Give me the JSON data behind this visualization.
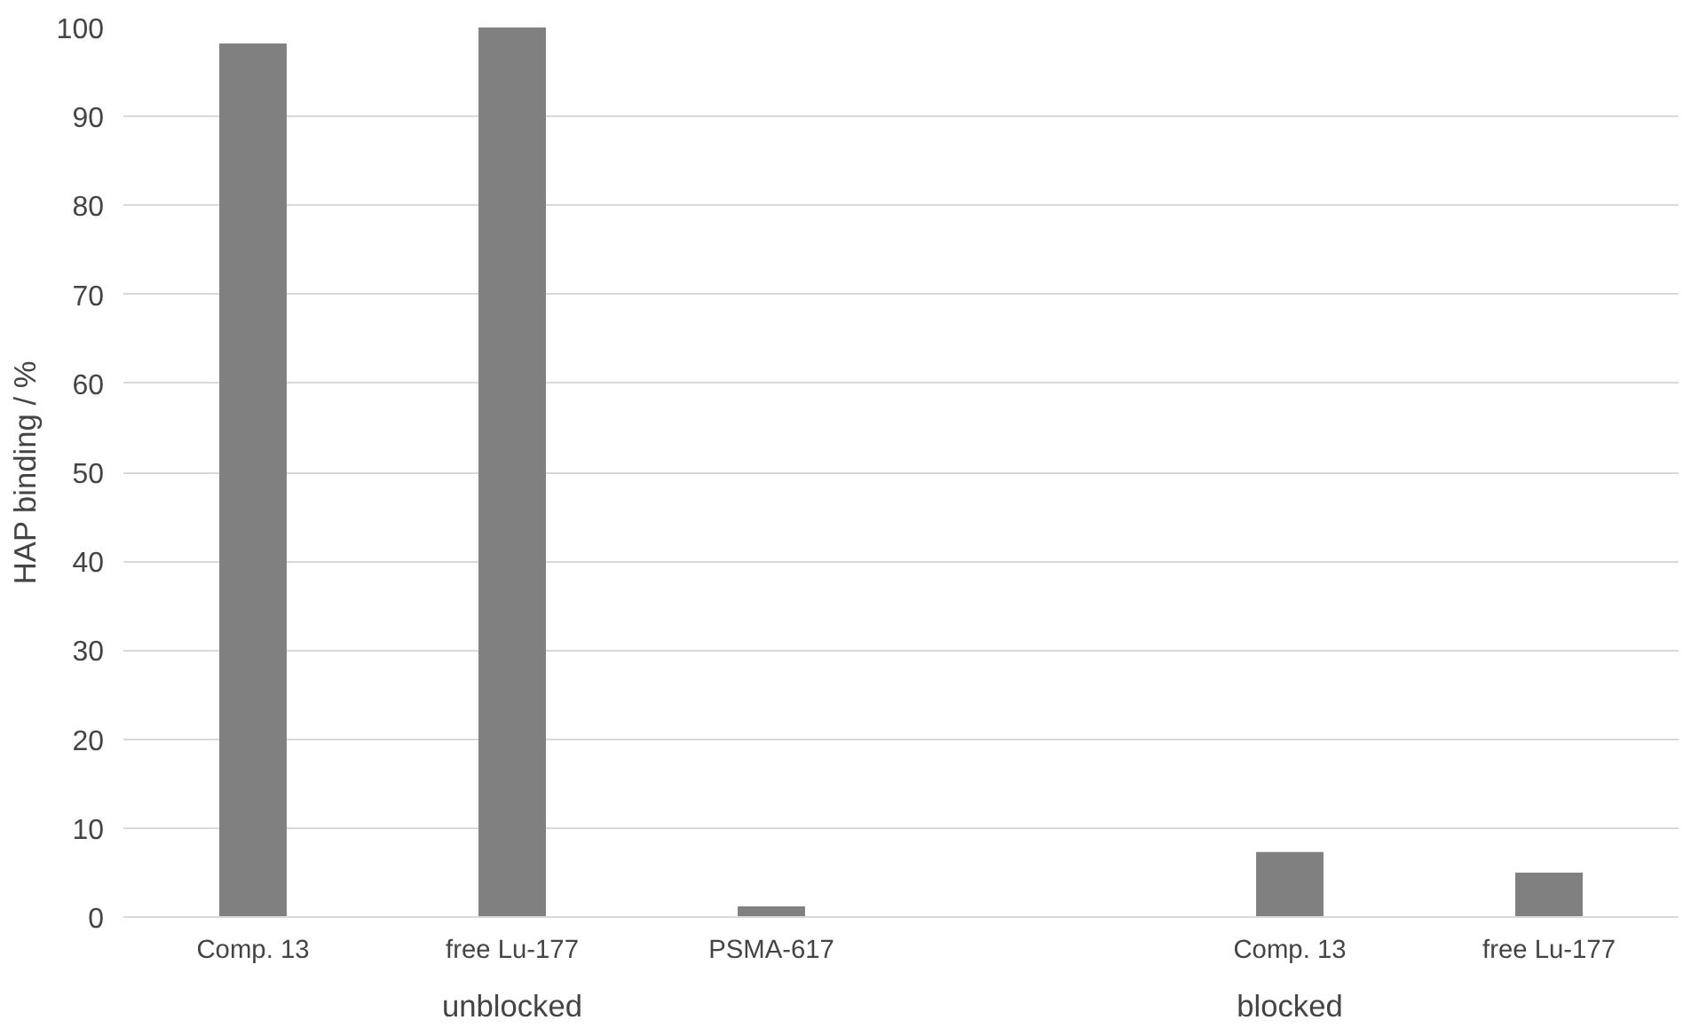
{
  "chart_data": {
    "type": "bar",
    "ylabel": "HAP binding / %",
    "categories": [
      "Comp. 13",
      "free Lu-177",
      "PSMA-617",
      null,
      "Comp. 13",
      "free Lu-177"
    ],
    "values": [
      98.2,
      100,
      1.2,
      null,
      7.3,
      5.0
    ],
    "color": "#808080",
    "ylim": [
      0,
      100
    ],
    "yticks": [
      0,
      10,
      20,
      30,
      40,
      50,
      60,
      70,
      80,
      90,
      100
    ],
    "grid": "y",
    "annotations": [
      "unblocked",
      "blocked"
    ]
  }
}
